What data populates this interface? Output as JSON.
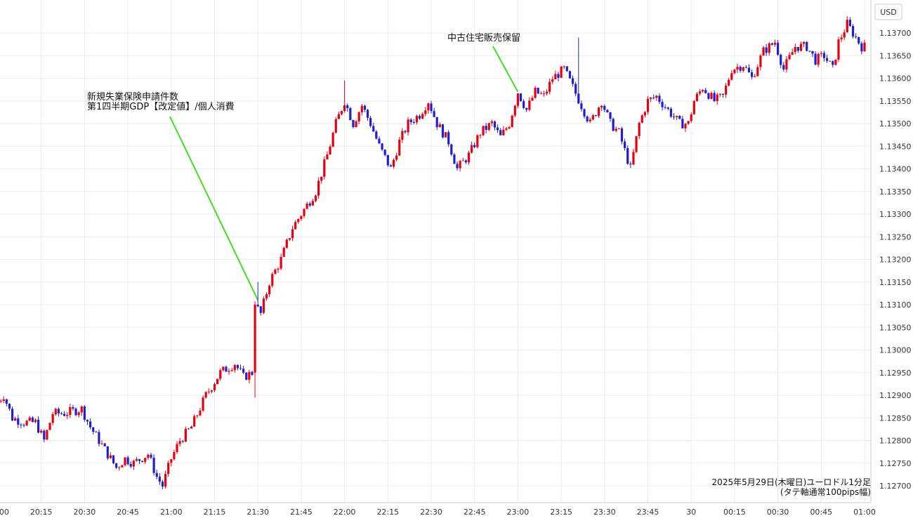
{
  "chart_data": {
    "type": "candlestick",
    "currency_label": "USD",
    "caption_line1": "2025年5月29日(木曜日)ユーロドル1分足",
    "caption_line2": "(タテ軸通常100pips幅)",
    "annotations": [
      {
        "lines": [
          "新規失業保険申請件数",
          "第1四半期GDP【改定値】/個人消費"
        ],
        "time": "21:30",
        "price": 1.1311
      },
      {
        "lines": [
          "中古住宅販売保留"
        ],
        "time": "23:00",
        "price": 1.1357
      }
    ],
    "y_ticks": [
      "1.12700",
      "1.12750",
      "1.12800",
      "1.12850",
      "1.12900",
      "1.12950",
      "1.13000",
      "1.13050",
      "1.13100",
      "1.13150",
      "1.13200",
      "1.13250",
      "1.13300",
      "1.13350",
      "1.13400",
      "1.13450",
      "1.13500",
      "1.13550",
      "1.13600",
      "1.13650",
      "1.13700"
    ],
    "x_ticks": [
      "20:00",
      "20:15",
      "20:30",
      "20:45",
      "21:00",
      "21:15",
      "21:30",
      "21:45",
      "22:00",
      "22:15",
      "22:30",
      "22:45",
      "23:00",
      "23:15",
      "23:30",
      "23:45",
      "30",
      "00:15",
      "00:30",
      "00:45",
      "01:00"
    ],
    "ylim": [
      1.1268,
      1.1374
    ],
    "up_color": "#e60012",
    "down_color": "#1f1fd1",
    "annotation_line_color": "#44dd22",
    "grid": true,
    "key_points": [
      [
        0,
        1.1288
      ],
      [
        3,
        1.129
      ],
      [
        6,
        1.1285
      ],
      [
        10,
        1.1284
      ],
      [
        14,
        1.1284
      ],
      [
        17,
        1.128
      ],
      [
        20,
        1.1286
      ],
      [
        24,
        1.1286
      ],
      [
        30,
        1.1287
      ],
      [
        33,
        1.1283
      ],
      [
        38,
        1.1278
      ],
      [
        42,
        1.1274
      ],
      [
        45,
        1.1276
      ],
      [
        48,
        1.1275
      ],
      [
        53,
        1.1277
      ],
      [
        56,
        1.1272
      ],
      [
        58,
        1.127
      ],
      [
        61,
        1.1276
      ],
      [
        64,
        1.128
      ],
      [
        68,
        1.1283
      ],
      [
        73,
        1.129
      ],
      [
        78,
        1.1295
      ],
      [
        83,
        1.1297
      ],
      [
        86,
        1.1294
      ],
      [
        89,
        1.1295
      ],
      [
        90,
        1.131
      ],
      [
        92,
        1.1308
      ],
      [
        95,
        1.1315
      ],
      [
        99,
        1.132
      ],
      [
        103,
        1.1327
      ],
      [
        107,
        1.1331
      ],
      [
        111,
        1.1335
      ],
      [
        115,
        1.1343
      ],
      [
        118,
        1.135
      ],
      [
        121,
        1.1355
      ],
      [
        124,
        1.135
      ],
      [
        127,
        1.1354
      ],
      [
        130,
        1.135
      ],
      [
        133,
        1.1345
      ],
      [
        137,
        1.134
      ],
      [
        140,
        1.1346
      ],
      [
        143,
        1.135
      ],
      [
        147,
        1.1352
      ],
      [
        150,
        1.1355
      ],
      [
        153,
        1.135
      ],
      [
        157,
        1.1346
      ],
      [
        160,
        1.134
      ],
      [
        164,
        1.1343
      ],
      [
        168,
        1.1348
      ],
      [
        172,
        1.135
      ],
      [
        175,
        1.1347
      ],
      [
        178,
        1.135
      ],
      [
        181,
        1.1357
      ],
      [
        184,
        1.1353
      ],
      [
        187,
        1.1357
      ],
      [
        190,
        1.1356
      ],
      [
        193,
        1.136
      ],
      [
        197,
        1.1362
      ],
      [
        200,
        1.1358
      ],
      [
        203,
        1.1354
      ],
      [
        206,
        1.135
      ],
      [
        210,
        1.1355
      ],
      [
        213,
        1.135
      ],
      [
        216,
        1.1348
      ],
      [
        220,
        1.134
      ],
      [
        223,
        1.135
      ],
      [
        226,
        1.1355
      ],
      [
        229,
        1.1356
      ],
      [
        233,
        1.1353
      ],
      [
        237,
        1.135
      ],
      [
        240,
        1.135
      ],
      [
        242,
        1.1355
      ],
      [
        245,
        1.1358
      ],
      [
        249,
        1.1355
      ],
      [
        252,
        1.1356
      ],
      [
        255,
        1.1362
      ],
      [
        259,
        1.1363
      ],
      [
        262,
        1.136
      ],
      [
        266,
        1.1366
      ],
      [
        270,
        1.1368
      ],
      [
        273,
        1.1362
      ],
      [
        277,
        1.1367
      ],
      [
        281,
        1.1367
      ],
      [
        284,
        1.1364
      ],
      [
        287,
        1.1365
      ],
      [
        290,
        1.1362
      ],
      [
        292,
        1.1368
      ],
      [
        295,
        1.1372
      ],
      [
        298,
        1.1369
      ],
      [
        300,
        1.1367
      ]
    ]
  }
}
